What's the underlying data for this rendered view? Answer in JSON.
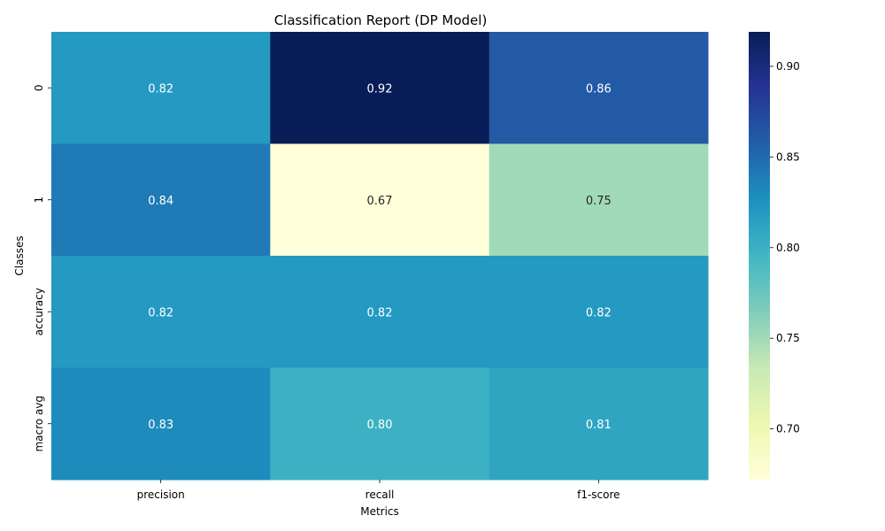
{
  "chart_data": {
    "type": "heatmap",
    "title": "Classification Report (DP Model)",
    "xlabel": "Metrics",
    "ylabel": "Classes",
    "x_categories": [
      "precision",
      "recall",
      "f1-score"
    ],
    "y_categories": [
      "0",
      "1",
      "accuracy",
      "macro avg"
    ],
    "values": [
      [
        0.82,
        0.92,
        0.86
      ],
      [
        0.84,
        0.67,
        0.75
      ],
      [
        0.82,
        0.82,
        0.82
      ],
      [
        0.83,
        0.8,
        0.81
      ]
    ],
    "cell_labels": [
      [
        "0.82",
        "0.92",
        "0.86"
      ],
      [
        "0.84",
        "0.67",
        "0.75"
      ],
      [
        "0.82",
        "0.82",
        "0.82"
      ],
      [
        "0.83",
        "0.80",
        "0.81"
      ]
    ],
    "colorbar": {
      "colormap": "YlGnBu",
      "vmin": 0.672,
      "vmax": 0.919,
      "ticks": [
        0.7,
        0.75,
        0.8,
        0.85,
        0.9
      ],
      "tick_labels": [
        "0.70",
        "0.75",
        "0.80",
        "0.85",
        "0.90"
      ]
    },
    "colormap_stops": [
      "#ffffd9",
      "#edf8b1",
      "#c7e9b4",
      "#7fcdbb",
      "#41b6c4",
      "#1d91c0",
      "#225ea8",
      "#253494",
      "#081d58"
    ]
  }
}
